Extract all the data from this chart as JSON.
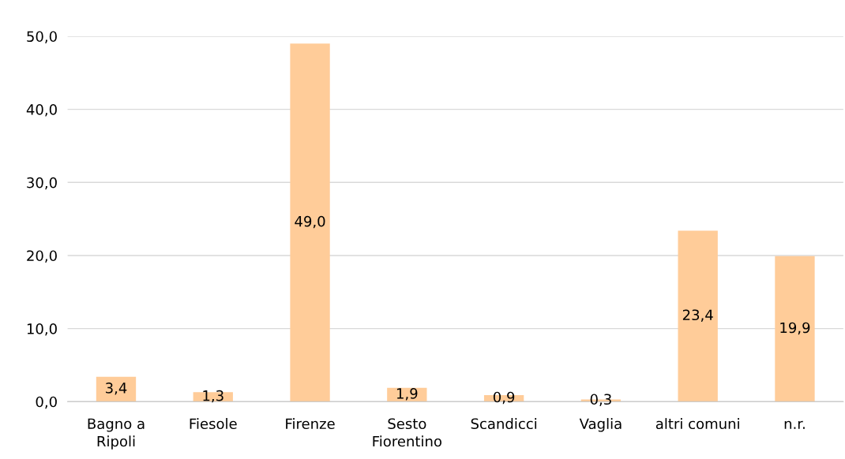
{
  "chart_data": {
    "type": "bar",
    "categories": [
      "Bagno a\nRipoli",
      "Fiesole",
      "Firenze",
      "Sesto\nFiorentino",
      "Scandicci",
      "Vaglia",
      "altri comuni",
      "n.r."
    ],
    "values": [
      3.4,
      1.3,
      49.0,
      1.9,
      0.9,
      0.3,
      23.4,
      19.9
    ],
    "value_labels": [
      "3,4",
      "1,3",
      "49,0",
      "1,9",
      "0,9",
      "0,3",
      "23,4",
      "19,9"
    ],
    "color": "#ffcc99",
    "ylim": [
      0,
      50
    ],
    "yticks": [
      {
        "value": 0,
        "label": "0,0"
      },
      {
        "value": 10,
        "label": "10,0"
      },
      {
        "value": 20,
        "label": "20,0"
      },
      {
        "value": 30,
        "label": "30,0"
      },
      {
        "value": 40,
        "label": "40,0"
      },
      {
        "value": 50,
        "label": "50,0"
      }
    ],
    "grid": "y"
  }
}
